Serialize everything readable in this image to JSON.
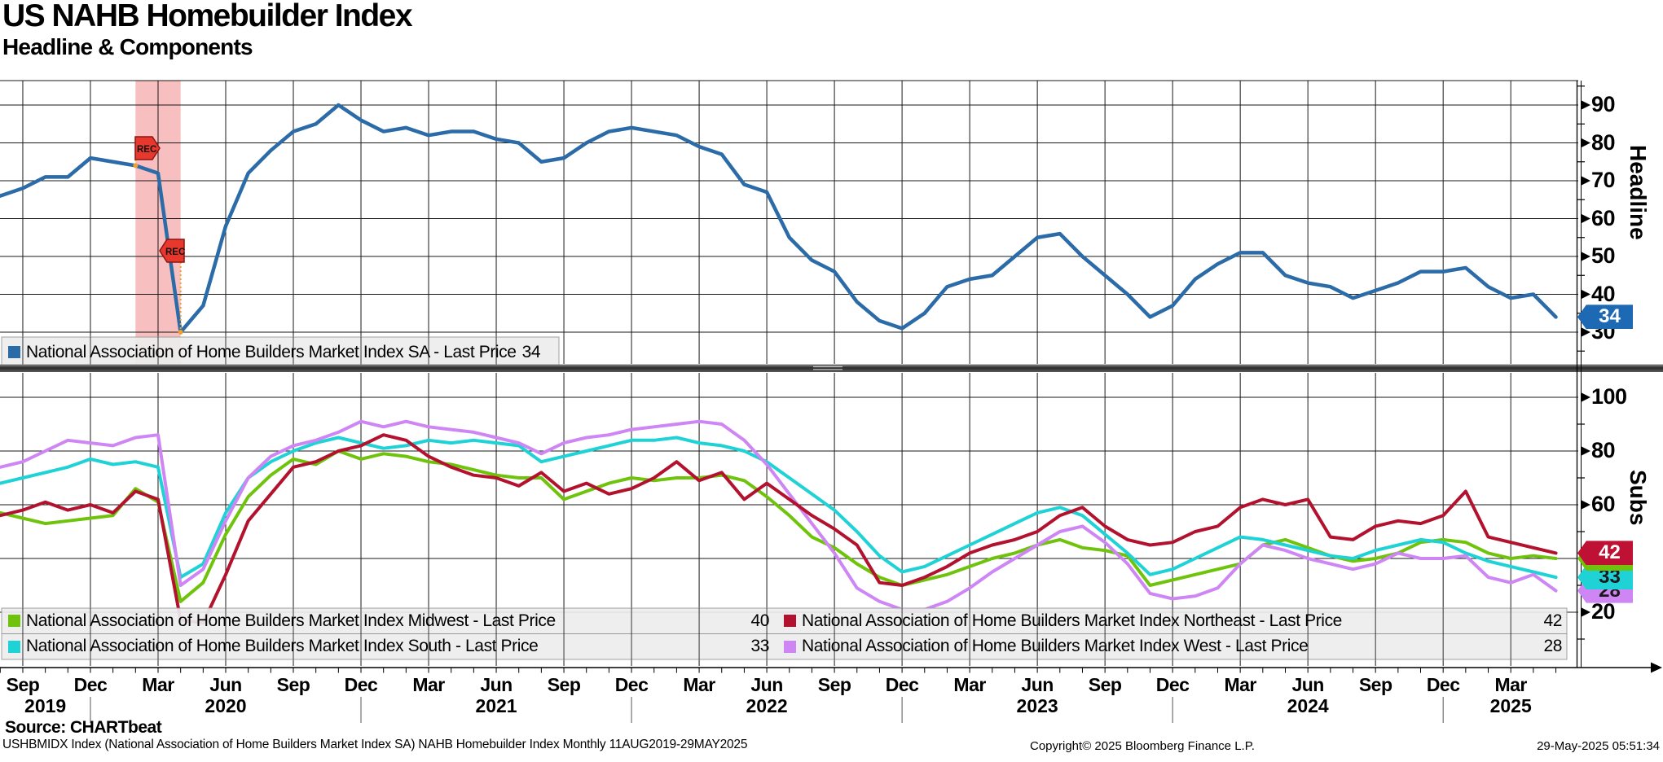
{
  "header": {
    "title": "US NAHB Homebuilder Index",
    "subtitle": "Headline & Components"
  },
  "top_panel": {
    "axis_title": "Headline",
    "ticks": [
      90,
      80,
      70,
      60,
      50,
      40,
      30
    ],
    "legend": {
      "swatch_color": "#2b6ba8",
      "label": "National Association of Home Builders Market Index SA - Last Price",
      "value": "34"
    },
    "badges": [
      {
        "value": "34",
        "bg": "#1d69b4",
        "fg": "#ffffff"
      }
    ]
  },
  "bottom_panel": {
    "axis_title": "Subs",
    "ticks": [
      100,
      80,
      60,
      40,
      20
    ],
    "legend_items": [
      {
        "swatch_color": "#6fc30d",
        "label": "National Association of Home Builders Market Index Midwest - Last Price",
        "value": "40"
      },
      {
        "swatch_color": "#b2122e",
        "label": "National Association of Home Builders Market Index Northeast - Last Price",
        "value": "42"
      },
      {
        "swatch_color": "#1fd2d6",
        "label": "National Association of Home Builders Market Index South - Last Price",
        "value": "33"
      },
      {
        "swatch_color": "#cf86f5",
        "label": "National Association of Home Builders Market Index West - Last Price",
        "value": "28"
      }
    ],
    "badges": [
      {
        "value": "28",
        "bg": "#cf86f5",
        "fg": "#1a1a1a"
      },
      {
        "value": "33",
        "bg": "#1fd2d6",
        "fg": "#1a1a1a"
      },
      {
        "value": "40",
        "bg": "#6fc30d",
        "fg": "#1a1a1a"
      },
      {
        "value": "42",
        "bg": "#bf1134",
        "fg": "#ffffff"
      }
    ]
  },
  "footer": {
    "source": "Source: CHARTbeat",
    "description": "USHBMIDX Index (National Association of Home Builders Market Index SA) NAHB Homebuilder Index  Monthly 11AUG2019-29MAY2025",
    "copyright": "Copyright© 2025 Bloomberg Finance L.P.",
    "timestamp": "29-May-2025 05:51:34"
  },
  "chart_data": {
    "type": "line",
    "frequency": "monthly",
    "x_range": [
      "Aug 2019",
      "May 2025"
    ],
    "x_tick_labels": [
      "Sep",
      "Dec",
      "Mar",
      "Jun",
      "Sep",
      "Dec",
      "Mar",
      "Jun",
      "Sep",
      "Dec",
      "Mar",
      "Jun",
      "Sep",
      "Dec",
      "Mar",
      "Jun",
      "Sep",
      "Dec",
      "Mar",
      "Jun",
      "Sep",
      "Dec",
      "Mar"
    ],
    "years": [
      {
        "label": "2019",
        "center_month": 2
      },
      {
        "label": "2020",
        "center_month": 10
      },
      {
        "label": "2021",
        "center_month": 22
      },
      {
        "label": "2022",
        "center_month": 34
      },
      {
        "label": "2023",
        "center_month": 46
      },
      {
        "label": "2024",
        "center_month": 58
      },
      {
        "label": "2025",
        "center_month": 67
      }
    ],
    "recession_band": {
      "start": "Feb 2020",
      "end": "Apr 2020",
      "start_index": 6,
      "end_index": 8,
      "markers": [
        {
          "label": "REC"
        },
        {
          "label": "REC"
        }
      ]
    },
    "panels": [
      {
        "name": "Headline",
        "axis_side": "right",
        "ticks": [
          90,
          80,
          70,
          60,
          50,
          40,
          30
        ],
        "grid": "on",
        "series": [
          {
            "name": "National Association of Home Builders Market Index SA",
            "color": "#2b6ba8",
            "last_price": 34,
            "values": [
              66,
              68,
              71,
              71,
              76,
              75,
              74,
              72,
              30,
              37,
              58,
              72,
              78,
              83,
              85,
              90,
              86,
              83,
              84,
              82,
              83,
              83,
              81,
              80,
              75,
              76,
              80,
              83,
              84,
              83,
              82,
              79,
              77,
              69,
              67,
              55,
              49,
              46,
              38,
              33,
              31,
              35,
              42,
              44,
              45,
              50,
              55,
              56,
              50,
              45,
              40,
              34,
              37,
              44,
              48,
              51,
              51,
              45,
              43,
              42,
              39,
              41,
              43,
              46,
              46,
              47,
              42,
              39,
              40,
              34
            ]
          }
        ]
      },
      {
        "name": "Subs",
        "axis_side": "right",
        "ticks": [
          100,
          80,
          60,
          40,
          20
        ],
        "grid": "on",
        "series": [
          {
            "name": "National Association of Home Builders Market Index Midwest",
            "color": "#6fc30d",
            "last_price": 40,
            "values": [
              57,
              55,
              53,
              54,
              55,
              56,
              66,
              61,
              24,
              31,
              49,
              63,
              71,
              77,
              75,
              80,
              77,
              79,
              78,
              76,
              75,
              73,
              71,
              70,
              70,
              62,
              65,
              68,
              70,
              69,
              70,
              70,
              71,
              69,
              63,
              56,
              48,
              44,
              38,
              33,
              30,
              32,
              34,
              37,
              40,
              42,
              45,
              47,
              44,
              43,
              41,
              30,
              32,
              34,
              36,
              38,
              45,
              47,
              44,
              41,
              39,
              40,
              42,
              46,
              47,
              46,
              42,
              40,
              41,
              40
            ]
          },
          {
            "name": "National Association of Home Builders Market Index South",
            "color": "#1fd2d6",
            "last_price": 33,
            "values": [
              68,
              70,
              72,
              74,
              77,
              75,
              76,
              74,
              33,
              38,
              57,
              70,
              76,
              80,
              83,
              85,
              83,
              81,
              82,
              84,
              83,
              84,
              83,
              82,
              76,
              78,
              80,
              82,
              84,
              84,
              85,
              83,
              82,
              80,
              76,
              70,
              64,
              58,
              50,
              41,
              35,
              37,
              41,
              45,
              49,
              53,
              57,
              59,
              56,
              49,
              42,
              34,
              36,
              40,
              44,
              48,
              47,
              45,
              43,
              41,
              40,
              43,
              45,
              47,
              46,
              42,
              39,
              37,
              35,
              33
            ]
          },
          {
            "name": "National Association of Home Builders Market Index West",
            "color": "#cf86f5",
            "last_price": 28,
            "values": [
              74,
              76,
              80,
              84,
              83,
              82,
              85,
              86,
              30,
              36,
              54,
              70,
              78,
              82,
              84,
              87,
              91,
              89,
              91,
              89,
              88,
              87,
              85,
              83,
              79,
              83,
              85,
              86,
              88,
              89,
              90,
              91,
              90,
              84,
              75,
              64,
              53,
              42,
              29,
              24,
              21,
              21,
              24,
              29,
              35,
              40,
              45,
              50,
              52,
              46,
              38,
              27,
              25,
              26,
              29,
              38,
              45,
              43,
              40,
              38,
              36,
              38,
              42,
              40,
              40,
              41,
              33,
              31,
              34,
              28
            ]
          },
          {
            "name": "National Association of Home Builders Market Index Northeast",
            "color": "#b2122e",
            "last_price": 42,
            "values": [
              56,
              58,
              61,
              58,
              60,
              57,
              65,
              62,
              17,
              16,
              34,
              54,
              64,
              74,
              76,
              80,
              82,
              86,
              84,
              78,
              74,
              71,
              70,
              67,
              72,
              65,
              68,
              64,
              66,
              70,
              76,
              69,
              72,
              62,
              68,
              62,
              56,
              51,
              45,
              31,
              30,
              33,
              37,
              42,
              45,
              47,
              50,
              56,
              59,
              52,
              47,
              45,
              46,
              50,
              52,
              59,
              62,
              60,
              62,
              48,
              47,
              52,
              54,
              53,
              56,
              65,
              48,
              46,
              44,
              42
            ]
          }
        ]
      }
    ]
  }
}
